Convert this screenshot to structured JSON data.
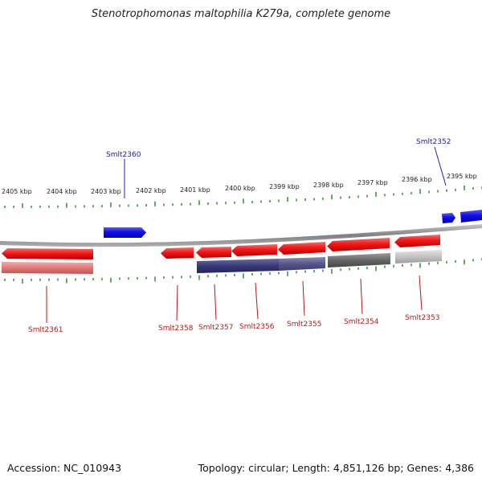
{
  "title": "Stenotrophomonas maltophilia K279a, complete genome",
  "footer": {
    "accession": "Accession: NC_010943",
    "summary": "Topology: circular; Length: 4,851,126 bp; Genes: 4,386"
  },
  "colors": {
    "backbone": "#8a8a8a",
    "forward_gene": "#1414e0",
    "reverse_gene": "#e01010",
    "reverse_label": "#b81818",
    "forward_label": "#2020a0",
    "cds_pale_red": "#e87d7d",
    "cds_navy": "#3d3c7a",
    "cds_slate": "#5a5880",
    "cds_dark_gray": "#6a6a6a",
    "cds_light_gray": "#c2c2c2",
    "tick": "#228822"
  },
  "ruler": {
    "labels": [
      "2405 kbp",
      "2404 kbp",
      "2403 kbp",
      "2402 kbp",
      "2401 kbp",
      "2400 kbp",
      "2399 kbp",
      "2398 kbp",
      "2397 kbp",
      "2396 kbp",
      "2395 kbp"
    ]
  },
  "genes": {
    "forward": [
      {
        "name": "Smlt2360",
        "labeled": true
      },
      {
        "name": "Smlt2352",
        "labeled": true
      }
    ],
    "reverse": [
      {
        "name": "Smlt2361"
      },
      {
        "name": "Smlt2358"
      },
      {
        "name": "Smlt2357"
      },
      {
        "name": "Smlt2356"
      },
      {
        "name": "Smlt2355"
      },
      {
        "name": "Smlt2354"
      },
      {
        "name": "Smlt2353"
      }
    ]
  }
}
